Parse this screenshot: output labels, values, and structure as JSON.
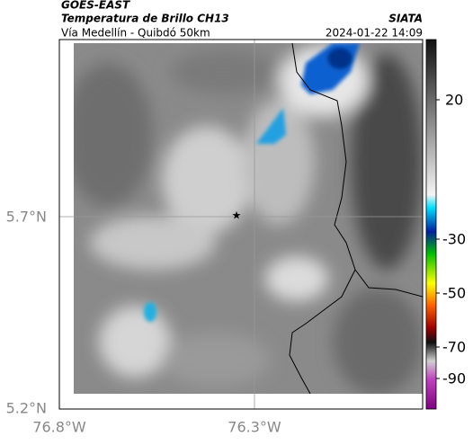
{
  "header": {
    "product": "GOES-EAST",
    "title": "Temperatura de Brillo CH13",
    "location": "Vía Medellín - Quibdó 50km",
    "source": "SIATA",
    "timestamp": "2024-01-22 14:09"
  },
  "map": {
    "lat_labels": [
      "5.7°N",
      "5.2°N"
    ],
    "lon_labels": [
      "76.8°W",
      "76.3°W"
    ]
  },
  "colorbar": {
    "ticks": [
      20,
      -30,
      -50,
      -70,
      -90
    ]
  }
}
